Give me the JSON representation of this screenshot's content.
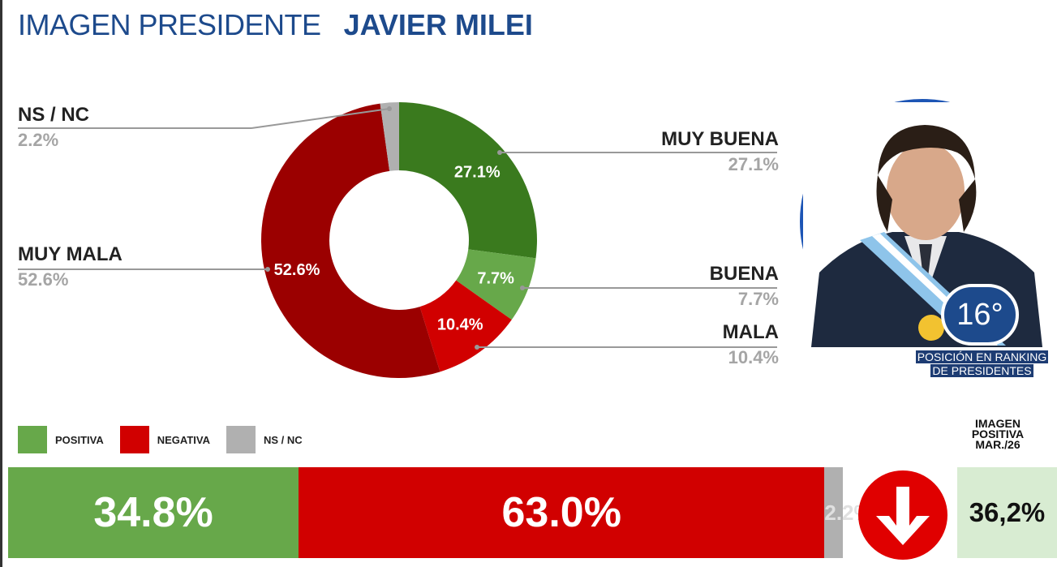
{
  "header": {
    "title_main": "IMAGEN PRESIDENTE",
    "title_name": "JAVIER MILEI"
  },
  "chart_data": [
    {
      "type": "pie",
      "donut": true,
      "title": "",
      "slices": [
        {
          "name": "MUY BUENA",
          "value": 27.1,
          "label": "27.1%",
          "color": "#3a7a1e"
        },
        {
          "name": "BUENA",
          "value": 7.7,
          "label": "7.7%",
          "color": "#67a84a"
        },
        {
          "name": "MALA",
          "value": 10.4,
          "label": "10.4%",
          "color": "#d10000"
        },
        {
          "name": "MUY MALA",
          "value": 52.6,
          "label": "52.6%",
          "color": "#9b0000"
        },
        {
          "name": "NS / NC",
          "value": 2.2,
          "label": "2.2%",
          "color": "#b0b0b0"
        }
      ]
    },
    {
      "type": "bar",
      "stacked": true,
      "orientation": "horizontal",
      "legend": [
        {
          "name": "POSITIVA",
          "color": "#67a84a"
        },
        {
          "name": "NEGATIVA",
          "color": "#d10000"
        },
        {
          "name": "NS / NC",
          "color": "#b0b0b0"
        }
      ],
      "series": [
        {
          "name": "POSITIVA",
          "value": 34.8,
          "label": "34.8%",
          "color": "#67a84a"
        },
        {
          "name": "NEGATIVA",
          "value": 63.0,
          "label": "63.0%",
          "color": "#d10000"
        },
        {
          "name": "NS / NC",
          "value": 2.2,
          "label": "2.2%",
          "color": "#b0b0b0"
        }
      ]
    }
  ],
  "ranking": {
    "position": "16°",
    "caption_line1": "POSICIÓN EN RANKING",
    "caption_line2": "DE PRESIDENTES"
  },
  "comparison": {
    "header_line1": "IMAGEN",
    "header_line2": "POSITIVA",
    "header_line3": "MAR./26",
    "value": "36,2%",
    "trend": "down",
    "trend_icon": "down-arrow-icon"
  }
}
